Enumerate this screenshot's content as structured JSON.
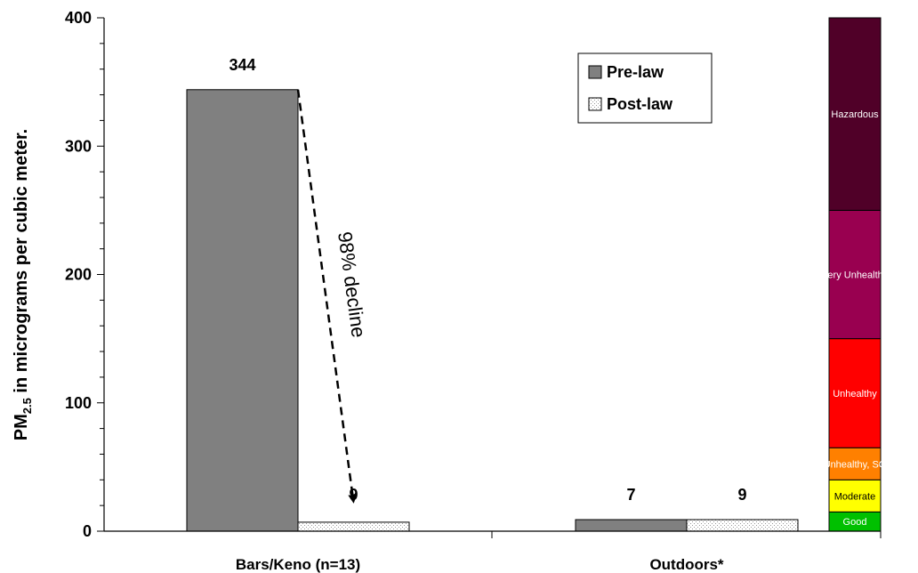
{
  "chart_data": {
    "type": "bar",
    "ylabel": {
      "prefix": "PM",
      "subscript": "2.5",
      "suffix": " in micrograms per cubic meter."
    },
    "ylim": [
      0,
      400
    ],
    "yticks": [
      0,
      100,
      200,
      300,
      400
    ],
    "categories": [
      "Bars/Keno (n=13)",
      "Outdoors*"
    ],
    "series": [
      {
        "name": "Pre-law",
        "values": [
          344,
          9
        ],
        "color": "#808080",
        "pattern": "solid"
      },
      {
        "name": "Post-law",
        "values": [
          7,
          9
        ],
        "color": "#ffffff",
        "pattern": "dotted"
      }
    ],
    "data_labels": [
      "344",
      "7",
      "9",
      "9"
    ],
    "annotation": {
      "text": "98% decline",
      "from_value": 344,
      "to_value": 25,
      "style": "dashed-arrow"
    },
    "legend": {
      "position": "top-right"
    },
    "aqi_bands": [
      {
        "label": "Good",
        "from": 0,
        "to": 15,
        "color": "#00c000"
      },
      {
        "label": "Moderate",
        "from": 15,
        "to": 40,
        "color": "#ffff00"
      },
      {
        "label": "Unhealthy, SG",
        "from": 40,
        "to": 65,
        "color": "#ff8000"
      },
      {
        "label": "Unhealthy",
        "from": 65,
        "to": 150,
        "color": "#ff0000"
      },
      {
        "label": "Very Unhealthy",
        "from": 150,
        "to": 250,
        "color": "#990050"
      },
      {
        "label": "Hazardous",
        "from": 250,
        "to": 400,
        "color": "#500028"
      }
    ]
  }
}
